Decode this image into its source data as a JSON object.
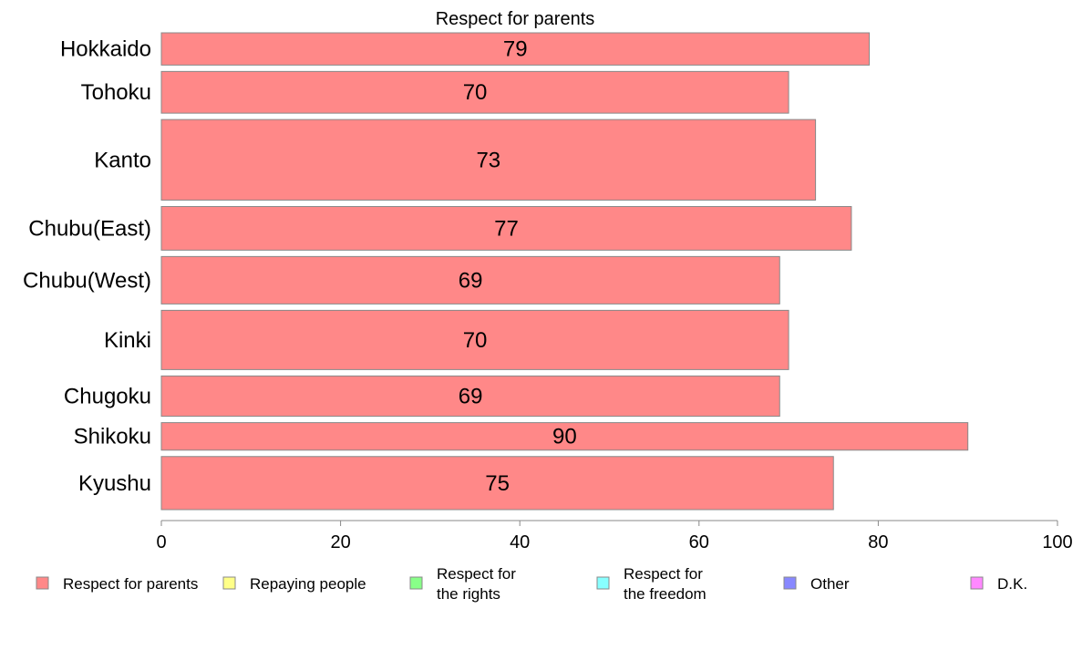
{
  "chart_data": {
    "type": "bar",
    "orientation": "horizontal",
    "title": "Respect for parents",
    "categories": [
      "Hokkaido",
      "Tohoku",
      "Kanto",
      "Chubu(East)",
      "Chubu(West)",
      "Kinki",
      "Chugoku",
      "Shikoku",
      "Kyushu"
    ],
    "series": [
      {
        "name": "Respect for parents",
        "values": [
          79,
          70,
          73,
          77,
          69,
          70,
          69,
          90,
          75
        ],
        "color": "#ff8888"
      }
    ],
    "data_labels": [
      "79",
      "70",
      "73",
      "77",
      "69",
      "70",
      "69",
      "90",
      "75"
    ],
    "bar_thickness_weights": [
      0.68,
      0.88,
      1.7,
      0.92,
      1.0,
      1.25,
      0.85,
      0.58,
      1.12
    ],
    "xlim": [
      0,
      100
    ],
    "xticks": [
      0,
      20,
      40,
      60,
      80,
      100
    ],
    "xtick_labels": [
      "0",
      "20",
      "40",
      "60",
      "80",
      "100"
    ],
    "xlabel": "",
    "ylabel": "",
    "grid": false,
    "legend": {
      "placement": "bottom",
      "entries": [
        {
          "lines": [
            "Respect for parents"
          ],
          "color": "#ff8888"
        },
        {
          "lines": [
            "Repaying people"
          ],
          "color": "#ffff88"
        },
        {
          "lines": [
            "Respect for",
            "the rights"
          ],
          "color": "#88ff88"
        },
        {
          "lines": [
            "Respect for",
            "the freedom"
          ],
          "color": "#88ffff"
        },
        {
          "lines": [
            "Other"
          ],
          "color": "#8888ff"
        },
        {
          "lines": [
            "D.K."
          ],
          "color": "#ff88ff"
        }
      ]
    }
  }
}
